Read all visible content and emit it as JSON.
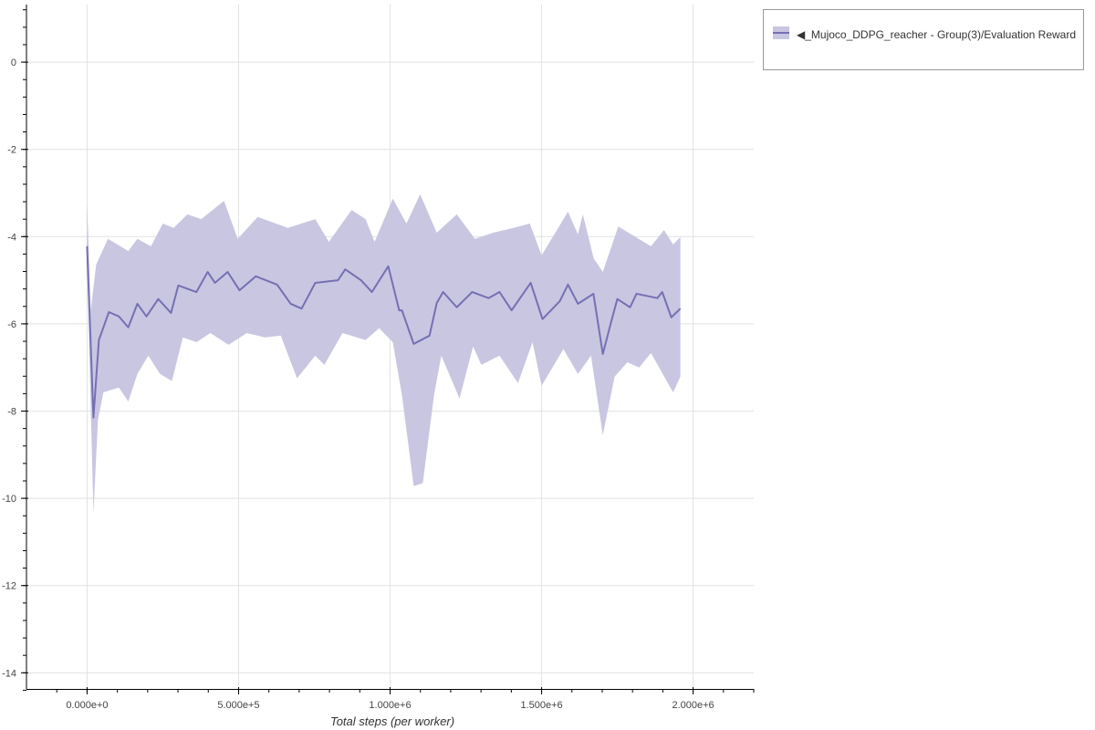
{
  "chart_data": {
    "type": "line",
    "title": "",
    "xlabel": "Total steps (per worker)",
    "ylabel": "",
    "xlim": [
      -200000,
      2200000
    ],
    "ylim": [
      -14.37,
      1.32
    ],
    "grid": true,
    "legend_position": "outside-top-right",
    "x_ticks": [
      0,
      500000,
      1000000,
      1500000,
      2000000
    ],
    "x_tick_labels": [
      "0.000e+0",
      "5.000e+5",
      "1.000e+6",
      "1.500e+6",
      "2.000e+6"
    ],
    "y_ticks": [
      0,
      -2,
      -4,
      -6,
      -8,
      -10,
      -12,
      -14
    ],
    "y_tick_labels": [
      "0",
      "-2",
      "-4",
      "-6",
      "-8",
      "-10",
      "-12",
      "-14"
    ],
    "series": [
      {
        "name": "◀_Mujoco_DDPG_reacher - Group(3)/Evaluation Reward",
        "color": "#7570b3",
        "band_color": "#c9c6e1",
        "x": [
          0,
          21000,
          39000,
          72000,
          105000,
          136000,
          166000,
          196000,
          235000,
          277000,
          301000,
          361000,
          398000,
          422000,
          464000,
          503000,
          557000,
          627000,
          672000,
          708000,
          753000,
          828000,
          852000,
          904000,
          940000,
          994000,
          1030000,
          1039000,
          1078000,
          1130000,
          1154000,
          1175000,
          1220000,
          1271000,
          1325000,
          1361000,
          1401000,
          1464000,
          1503000,
          1560000,
          1587000,
          1620000,
          1671000,
          1702000,
          1732000,
          1750000,
          1792000,
          1813000,
          1882000,
          1898000,
          1928000,
          1958000
        ],
        "y": [
          -4.22,
          -8.15,
          -6.37,
          -5.73,
          -5.83,
          -6.08,
          -5.54,
          -5.83,
          -5.43,
          -5.75,
          -5.12,
          -5.27,
          -4.81,
          -5.06,
          -4.81,
          -5.23,
          -4.91,
          -5.1,
          -5.54,
          -5.65,
          -5.06,
          -5.0,
          -4.75,
          -5.0,
          -5.27,
          -4.68,
          -5.69,
          -5.69,
          -6.46,
          -6.27,
          -5.52,
          -5.27,
          -5.62,
          -5.27,
          -5.41,
          -5.27,
          -5.69,
          -5.06,
          -5.89,
          -5.48,
          -5.1,
          -5.54,
          -5.31,
          -6.69,
          -5.89,
          -5.43,
          -5.62,
          -5.31,
          -5.41,
          -5.27,
          -5.85,
          -5.65
        ],
        "upper": {
          "x": [
            0,
            12000,
            30000,
            69000,
            136000,
            166000,
            211000,
            250000,
            286000,
            331000,
            377000,
            452000,
            497000,
            563000,
            663000,
            753000,
            798000,
            873000,
            919000,
            949000,
            1009000,
            1054000,
            1099000,
            1154000,
            1220000,
            1280000,
            1340000,
            1407000,
            1461000,
            1500000,
            1587000,
            1620000,
            1636000,
            1672000,
            1702000,
            1753000,
            1861000,
            1904000,
            1934000,
            1958000
          ],
          "y": [
            -3.18,
            -5.7,
            -4.64,
            -4.05,
            -4.33,
            -4.05,
            -4.22,
            -3.7,
            -3.8,
            -3.49,
            -3.6,
            -3.18,
            -4.05,
            -3.55,
            -3.8,
            -3.6,
            -4.12,
            -3.39,
            -3.6,
            -4.12,
            -3.13,
            -3.7,
            -3.03,
            -3.91,
            -3.49,
            -4.05,
            -3.91,
            -3.8,
            -3.7,
            -4.43,
            -3.43,
            -3.95,
            -3.49,
            -4.5,
            -4.81,
            -3.77,
            -4.22,
            -3.85,
            -4.18,
            -4.01
          ]
        },
        "lower": {
          "x": [
            0,
            21000,
            36000,
            54000,
            105000,
            136000,
            166000,
            202000,
            241000,
            280000,
            316000,
            361000,
            407000,
            467000,
            527000,
            587000,
            639000,
            693000,
            753000,
            783000,
            843000,
            919000,
            964000,
            1009000,
            1039000,
            1078000,
            1108000,
            1145000,
            1169000,
            1229000,
            1274000,
            1301000,
            1361000,
            1422000,
            1470000,
            1500000,
            1572000,
            1620000,
            1663000,
            1702000,
            1741000,
            1783000,
            1822000,
            1861000,
            1934000,
            1958000
          ],
          "y": [
            -4.6,
            -10.33,
            -8.2,
            -7.57,
            -7.46,
            -7.78,
            -7.15,
            -6.73,
            -7.15,
            -7.31,
            -6.31,
            -6.42,
            -6.21,
            -6.48,
            -6.21,
            -6.31,
            -6.27,
            -7.25,
            -6.73,
            -6.94,
            -6.21,
            -6.37,
            -6.1,
            -6.42,
            -7.63,
            -9.72,
            -9.65,
            -7.63,
            -6.73,
            -7.71,
            -6.52,
            -6.94,
            -6.73,
            -7.36,
            -6.42,
            -7.42,
            -6.58,
            -7.15,
            -6.73,
            -8.55,
            -7.21,
            -6.88,
            -7.0,
            -6.67,
            -7.57,
            -7.21
          ]
        }
      }
    ]
  },
  "legend": {
    "label": "◀_Mujoco_DDPG_reacher - Group(3)/Evaluation Reward"
  }
}
